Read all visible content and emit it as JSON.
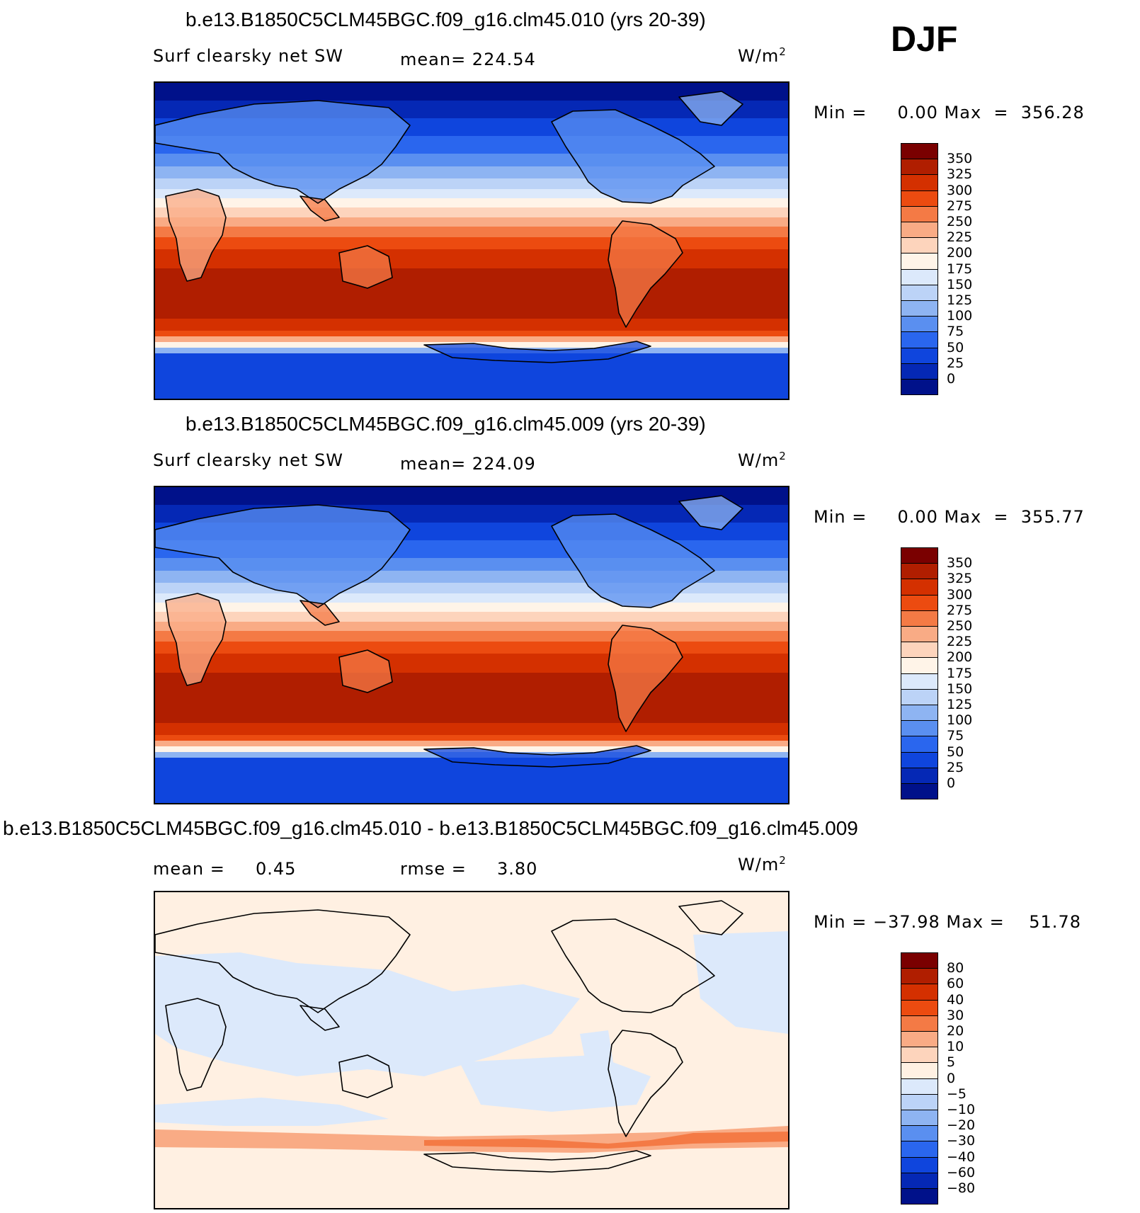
{
  "season": "DJF",
  "panels": [
    {
      "title": "b.e13.B1850C5CLM45BGC.f09_g16.clm45.010 (yrs 20-39)",
      "variable": "Surf clearsky net SW",
      "stat_text": "mean= 224.54",
      "units": "W/m",
      "units_sup": "2",
      "minmax": "Min =     0.00 Max  =  356.28",
      "kind": "absolute"
    },
    {
      "title": "b.e13.B1850C5CLM45BGC.f09_g16.clm45.009 (yrs 20-39)",
      "variable": "Surf clearsky net SW",
      "stat_text": "mean= 224.09",
      "units": "W/m",
      "units_sup": "2",
      "minmax": "Min =     0.00 Max  =  355.77",
      "kind": "absolute"
    },
    {
      "title": "b.e13.B1850C5CLM45BGC.f09_g16.clm45.010 - b.e13.B1850C5CLM45BGC.f09_g16.clm45.009",
      "mean_text": "mean =     0.45",
      "rmse_text": "rmse =     3.80",
      "units": "W/m",
      "units_sup": "2",
      "minmax": "Min = −37.98 Max =    51.78",
      "kind": "difference"
    }
  ],
  "colorbars": {
    "absolute": {
      "labels": [
        "350",
        "325",
        "300",
        "275",
        "250",
        "225",
        "200",
        "175",
        "150",
        "125",
        "100",
        "75",
        "50",
        "25",
        "0"
      ],
      "colors": [
        "#7a0000",
        "#b01e00",
        "#d43000",
        "#ec4b10",
        "#f47a45",
        "#f9ab85",
        "#fdd4bc",
        "#fff4e8",
        "#dce9fb",
        "#bcd3f7",
        "#8eb4f2",
        "#5a8ff0",
        "#2a66ee",
        "#0f45dd",
        "#0528b5",
        "#00118a"
      ]
    },
    "difference": {
      "labels": [
        "80",
        "60",
        "40",
        "30",
        "20",
        "10",
        "5",
        "0",
        "−5",
        "−10",
        "−20",
        "−30",
        "−40",
        "−60",
        "−80"
      ],
      "colors": [
        "#7a0000",
        "#b01e00",
        "#d43000",
        "#ec4b10",
        "#f47a45",
        "#f9ab85",
        "#fdd4bc",
        "#fff0e2",
        "#dce9fb",
        "#bcd3f7",
        "#8eb4f2",
        "#5a8ff0",
        "#2a66ee",
        "#0f45dd",
        "#0528b5",
        "#00118a"
      ]
    }
  }
}
